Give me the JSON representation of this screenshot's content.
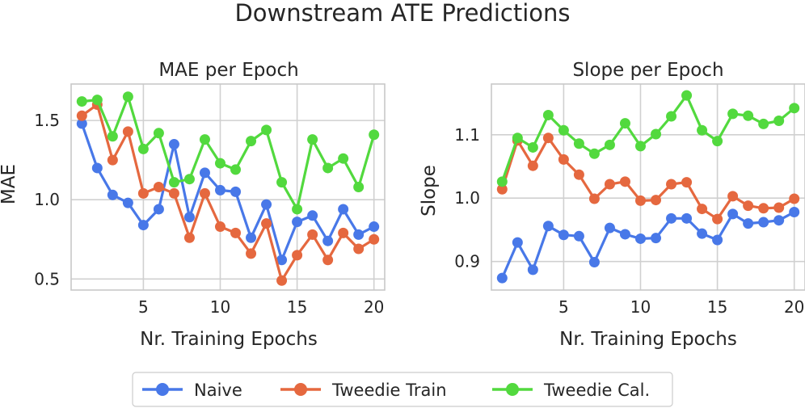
{
  "figure_title": "Downstream ATE Predictions",
  "colors": {
    "naive": "#4878e8",
    "tweedie_train": "#e5683f",
    "tweedie_cal": "#52d93e",
    "grid": "#d0d0d0",
    "spine": "#c8c8c8"
  },
  "legend": [
    {
      "name": "Naive",
      "color": "#4878e8"
    },
    {
      "name": "Tweedie Train",
      "color": "#e5683f"
    },
    {
      "name": "Tweedie Cal.",
      "color": "#52d93e"
    }
  ],
  "chart_data": [
    {
      "type": "line",
      "title": "MAE per Epoch",
      "xlabel": "Nr. Training Epochs",
      "ylabel": "MAE",
      "x": [
        1,
        2,
        3,
        4,
        5,
        6,
        7,
        8,
        9,
        10,
        11,
        12,
        13,
        14,
        15,
        16,
        17,
        18,
        19,
        20
      ],
      "xlim": [
        0.3,
        20.7
      ],
      "ylim": [
        0.43,
        1.73
      ],
      "xticks": [
        5,
        10,
        15,
        20
      ],
      "yticks": [
        0.5,
        1.0,
        1.5
      ],
      "ytick_labels": [
        "0.5",
        "1.0",
        "1.5"
      ],
      "grid": true,
      "series": [
        {
          "name": "Naive",
          "color": "#4878e8",
          "values": [
            1.48,
            1.2,
            1.03,
            0.98,
            0.84,
            0.94,
            1.35,
            0.89,
            1.17,
            1.06,
            1.05,
            0.76,
            0.97,
            0.62,
            0.86,
            0.9,
            0.74,
            0.94,
            0.78,
            0.83
          ]
        },
        {
          "name": "Tweedie Train",
          "color": "#e5683f",
          "values": [
            1.53,
            1.6,
            1.25,
            1.43,
            1.04,
            1.08,
            1.04,
            0.76,
            1.04,
            0.83,
            0.79,
            0.66,
            0.85,
            0.49,
            0.65,
            0.78,
            0.62,
            0.79,
            0.69,
            0.75
          ]
        },
        {
          "name": "Tweedie Cal.",
          "color": "#52d93e",
          "values": [
            1.62,
            1.63,
            1.4,
            1.65,
            1.32,
            1.42,
            1.11,
            1.13,
            1.38,
            1.23,
            1.19,
            1.37,
            1.44,
            1.11,
            0.94,
            1.38,
            1.2,
            1.26,
            1.08,
            1.41
          ]
        }
      ]
    },
    {
      "type": "line",
      "title": "Slope per Epoch",
      "xlabel": "Nr. Training Epochs",
      "ylabel": "Slope",
      "x": [
        1,
        2,
        3,
        4,
        5,
        6,
        7,
        8,
        9,
        10,
        11,
        12,
        13,
        14,
        15,
        16,
        17,
        18,
        19,
        20
      ],
      "xlim": [
        0.3,
        20.7
      ],
      "ylim": [
        0.855,
        1.18
      ],
      "xticks": [
        5,
        10,
        15,
        20
      ],
      "yticks": [
        0.9,
        1.0,
        1.1
      ],
      "ytick_labels": [
        "0.9",
        "1.0",
        "1.1"
      ],
      "grid": true,
      "series": [
        {
          "name": "Naive",
          "color": "#4878e8",
          "values": [
            0.874,
            0.93,
            0.887,
            0.956,
            0.942,
            0.94,
            0.899,
            0.953,
            0.943,
            0.936,
            0.937,
            0.968,
            0.968,
            0.944,
            0.934,
            0.975,
            0.96,
            0.962,
            0.965,
            0.978
          ]
        },
        {
          "name": "Tweedie Train",
          "color": "#e5683f",
          "values": [
            1.014,
            1.091,
            1.051,
            1.095,
            1.061,
            1.037,
            0.999,
            1.022,
            1.026,
            0.996,
            0.997,
            1.022,
            1.025,
            0.983,
            0.967,
            1.003,
            0.988,
            0.984,
            0.985,
            0.999
          ]
        },
        {
          "name": "Tweedie Cal.",
          "color": "#52d93e",
          "values": [
            1.026,
            1.095,
            1.08,
            1.131,
            1.107,
            1.086,
            1.07,
            1.084,
            1.118,
            1.082,
            1.101,
            1.129,
            1.162,
            1.107,
            1.09,
            1.133,
            1.13,
            1.117,
            1.122,
            1.142
          ]
        }
      ]
    }
  ]
}
